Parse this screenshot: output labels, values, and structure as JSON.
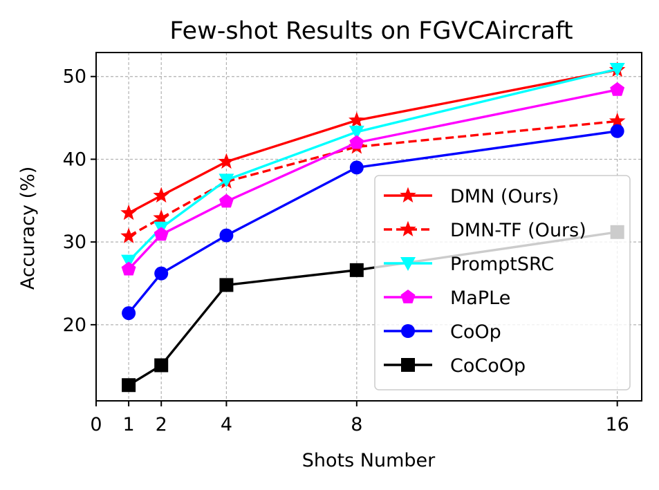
{
  "chart_data": {
    "type": "line",
    "title": "Few-shot Results on FGVCAircraft",
    "xlabel": "Shots Number",
    "ylabel": "Accuracy (%)",
    "x": [
      1,
      2,
      4,
      8,
      16
    ],
    "xticks": [
      "0",
      "1",
      "2",
      "4",
      "8",
      "16"
    ],
    "xtick_values": [
      0,
      1,
      2,
      4,
      8,
      16
    ],
    "yticks": [
      "20",
      "30",
      "40",
      "50"
    ],
    "ytick_values": [
      20,
      30,
      40,
      50
    ],
    "xlim": [
      0,
      16.75
    ],
    "ylim": [
      10.8,
      52.9
    ],
    "grid": true,
    "legend_position": "lower-right",
    "series": [
      {
        "name": "DMN (Ours)",
        "values": [
          33.5,
          35.6,
          39.7,
          44.7,
          50.8
        ],
        "color": "#ff0000",
        "dashed": false,
        "marker": "star"
      },
      {
        "name": "DMN-TF (Ours)",
        "values": [
          30.7,
          32.9,
          37.3,
          41.5,
          44.6
        ],
        "color": "#ff0000",
        "dashed": true,
        "marker": "star"
      },
      {
        "name": "PromptSRC",
        "values": [
          27.7,
          31.7,
          37.5,
          43.3,
          50.9
        ],
        "color": "#00ffff",
        "dashed": false,
        "marker": "triangle-down"
      },
      {
        "name": "MaPLe",
        "values": [
          26.7,
          30.9,
          34.9,
          42.0,
          48.4
        ],
        "color": "#ff00ff",
        "dashed": false,
        "marker": "pentagon"
      },
      {
        "name": "CoOp",
        "values": [
          21.4,
          26.2,
          30.8,
          39.0,
          43.4
        ],
        "color": "#0000ff",
        "dashed": false,
        "marker": "circle"
      },
      {
        "name": "CoCoOp",
        "values": [
          12.7,
          15.1,
          24.8,
          26.6,
          31.2
        ],
        "color": "#000000",
        "dashed": false,
        "marker": "square"
      }
    ]
  }
}
